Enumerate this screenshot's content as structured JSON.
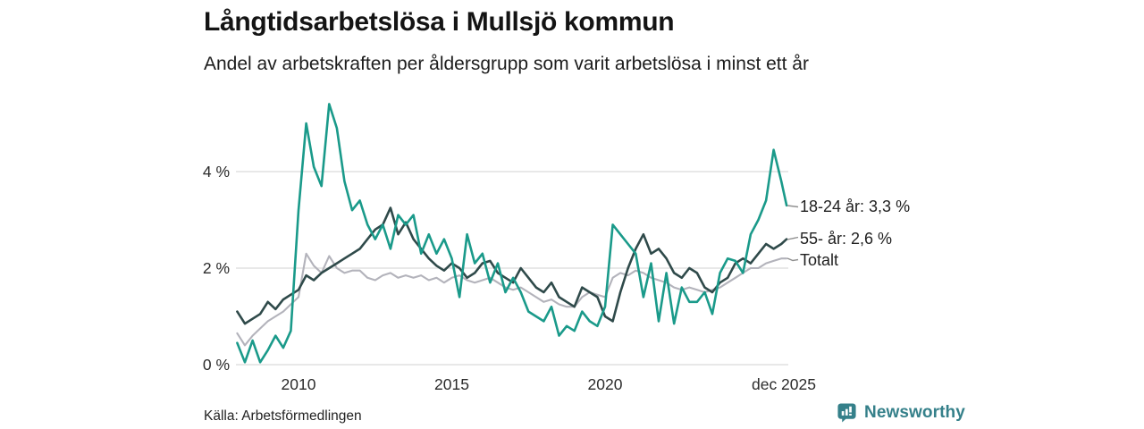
{
  "header": {
    "title": "Långtidsarbetslösa i Mullsjö kommun",
    "subtitle": "Andel av arbetskraften per åldersgrupp som varit arbetslösa i minst ett år"
  },
  "footer": {
    "source": "Källa: Arbetsförmedlingen",
    "brand": "Newsworthy",
    "brand_color": "#35808a",
    "logo_icon": "speech-bubble-bar-chart"
  },
  "chart_data": {
    "type": "line",
    "title": "Långtidsarbetslösa i Mullsjö kommun",
    "subtitle": "Andel av arbetskraften per åldersgrupp som varit arbetslösa i minst ett år",
    "x_unit": "decimal_year",
    "grid": "horizontal",
    "legend_position": "right-end-labels",
    "ylim": [
      0,
      5.5
    ],
    "yticks": [
      {
        "value": 0,
        "label": "0 %"
      },
      {
        "value": 2,
        "label": "2 %"
      },
      {
        "value": 4,
        "label": "4 %"
      }
    ],
    "xticks": [
      {
        "value": 2010,
        "label": "2010"
      },
      {
        "value": 2015,
        "label": "2015"
      },
      {
        "value": 2020,
        "label": "2020"
      },
      {
        "value": 2025.92,
        "label": "dec 2025"
      }
    ],
    "x": [
      2008,
      2008.25,
      2008.5,
      2008.75,
      2009,
      2009.25,
      2009.5,
      2009.75,
      2010,
      2010.25,
      2010.5,
      2010.75,
      2011,
      2011.25,
      2011.5,
      2011.75,
      2012,
      2012.25,
      2012.5,
      2012.75,
      2013,
      2013.25,
      2013.5,
      2013.75,
      2014,
      2014.25,
      2014.5,
      2014.75,
      2015,
      2015.25,
      2015.5,
      2015.75,
      2016,
      2016.25,
      2016.5,
      2016.75,
      2017,
      2017.25,
      2017.5,
      2017.75,
      2018,
      2018.25,
      2018.5,
      2018.75,
      2019,
      2019.25,
      2019.5,
      2019.75,
      2020,
      2020.25,
      2020.5,
      2020.75,
      2021,
      2021.25,
      2021.5,
      2021.75,
      2022,
      2022.25,
      2022.5,
      2022.75,
      2023,
      2023.25,
      2023.5,
      2023.75,
      2024,
      2024.25,
      2024.5,
      2024.75,
      2025,
      2025.25,
      2025.5,
      2025.75,
      2025.92
    ],
    "series": [
      {
        "name": "18-24 år",
        "end_label": "18-24 år: 3,3 %",
        "end_value_label": "3,3 %",
        "color": "#1a9a8a",
        "values": [
          0.45,
          0.05,
          0.5,
          0.05,
          0.3,
          0.6,
          0.35,
          0.7,
          3.2,
          5.0,
          4.1,
          3.7,
          5.4,
          4.9,
          3.8,
          3.2,
          3.4,
          2.9,
          2.6,
          2.9,
          2.4,
          3.1,
          2.9,
          3.1,
          2.3,
          2.7,
          2.3,
          2.6,
          2.2,
          1.4,
          2.7,
          2.1,
          2.3,
          1.7,
          2.1,
          1.5,
          1.8,
          1.5,
          1.1,
          1.0,
          0.9,
          1.2,
          0.6,
          0.8,
          0.7,
          1.1,
          0.9,
          0.8,
          1.2,
          2.9,
          2.7,
          2.5,
          2.3,
          1.4,
          2.1,
          0.9,
          1.9,
          0.85,
          1.6,
          1.3,
          1.3,
          1.5,
          1.05,
          1.9,
          2.2,
          2.15,
          1.9,
          2.7,
          3.0,
          3.4,
          4.45,
          3.8,
          3.3
        ]
      },
      {
        "name": "55- år",
        "end_label": "55- år: 2,6 %",
        "end_value_label": "2,6 %",
        "color": "#2f4a4a",
        "values": [
          1.1,
          0.85,
          0.95,
          1.05,
          1.3,
          1.15,
          1.35,
          1.45,
          1.55,
          1.85,
          1.75,
          1.9,
          2.0,
          2.1,
          2.2,
          2.3,
          2.4,
          2.6,
          2.8,
          2.9,
          3.25,
          2.7,
          2.95,
          2.6,
          2.4,
          2.2,
          2.05,
          1.95,
          2.1,
          2.0,
          1.8,
          1.9,
          2.1,
          2.15,
          1.9,
          1.8,
          1.7,
          2.0,
          1.8,
          1.6,
          1.5,
          1.7,
          1.4,
          1.3,
          1.2,
          1.6,
          1.5,
          1.4,
          1.0,
          0.9,
          1.5,
          2.0,
          2.4,
          2.7,
          2.3,
          2.4,
          2.2,
          1.9,
          1.8,
          2.0,
          1.9,
          1.6,
          1.5,
          1.7,
          1.8,
          2.1,
          2.2,
          2.1,
          2.3,
          2.5,
          2.4,
          2.5,
          2.6
        ]
      },
      {
        "name": "Totalt",
        "end_label": "Totalt",
        "end_value_label": "",
        "color": "#b3b3bb",
        "values": [
          0.65,
          0.4,
          0.6,
          0.75,
          0.9,
          1.0,
          1.1,
          1.25,
          1.4,
          2.3,
          2.05,
          1.9,
          2.25,
          2.0,
          1.9,
          1.95,
          1.95,
          1.8,
          1.75,
          1.85,
          1.9,
          1.8,
          1.85,
          1.8,
          1.85,
          1.75,
          1.8,
          1.7,
          1.8,
          1.85,
          1.75,
          1.7,
          1.75,
          1.8,
          1.7,
          1.6,
          1.55,
          1.6,
          1.5,
          1.4,
          1.3,
          1.35,
          1.25,
          1.2,
          1.2,
          1.4,
          1.5,
          1.45,
          1.4,
          1.8,
          1.9,
          1.85,
          1.95,
          1.9,
          1.8,
          1.75,
          1.7,
          1.6,
          1.55,
          1.6,
          1.55,
          1.5,
          1.55,
          1.6,
          1.7,
          1.8,
          1.9,
          2.0,
          2.0,
          2.1,
          2.15,
          2.2,
          2.2
        ]
      }
    ]
  }
}
